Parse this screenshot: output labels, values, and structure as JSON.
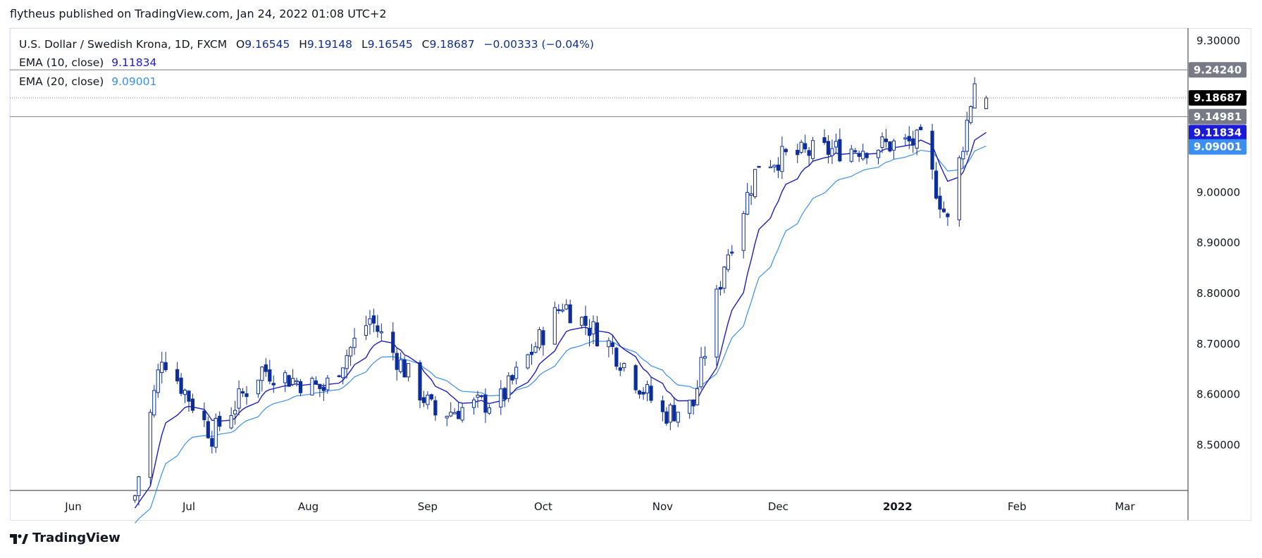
{
  "header": {
    "text": "flytheus published on TradingView.com, Jan 24, 2022 01:08 UTC+2"
  },
  "footer": {
    "brand": "TradingView"
  },
  "legend": {
    "symbol": "U.S. Dollar / Swedish Krona, 1D, FXCM",
    "open_label": "O",
    "open": "9.16545",
    "high_label": "H",
    "high": "9.19148",
    "low_label": "L",
    "low": "9.16545",
    "close_label": "C",
    "close": "9.18687",
    "change": "−0.00333 (−0.04%)",
    "ema10_label": "EMA (10, close)",
    "ema10_value": "9.11834",
    "ema20_label": "EMA (20, close)",
    "ema20_value": "9.09001"
  },
  "colors": {
    "candle_up_border": "#0d2e9a",
    "candle_down": "#0d2e9a",
    "ema10": "#1c1ccc",
    "ema20": "#3b8ff0",
    "last_price_badge": "#000000",
    "hline_badge": "#787b86",
    "ema10_badge": "#1a1ad8",
    "ema20_badge": "#3b8ff0"
  },
  "chart_data": {
    "type": "candlestick",
    "title": "U.S. Dollar / Swedish Krona, 1D, FXCM",
    "x_ticks": [
      "Jun",
      "Jul",
      "Aug",
      "Sep",
      "Oct",
      "Nov",
      "Dec",
      "2022",
      "Feb",
      "Mar"
    ],
    "y_ticks": [
      "9.30000",
      "9.00000",
      "8.90000",
      "8.80000",
      "8.70000",
      "8.60000",
      "8.50000"
    ],
    "ylim": [
      8.41,
      9.325
    ],
    "horizontal_lines": [
      9.2424,
      9.14981
    ],
    "dotted_line": 9.18687,
    "price_badges": [
      {
        "label": "9.24240",
        "value": 9.2424,
        "kind": "hline"
      },
      {
        "label": "9.18687",
        "value": 9.18687,
        "kind": "last"
      },
      {
        "label": "9.14981",
        "value": 9.14981,
        "kind": "hline"
      },
      {
        "label": "9.11834",
        "value": 9.11834,
        "kind": "ema10"
      },
      {
        "label": "9.09001",
        "value": 9.09001,
        "kind": "ema20"
      }
    ],
    "monthly_path": {
      "dates": [
        "2021-06-17",
        "2021-06-24",
        "2021-07-07",
        "2021-07-20",
        "2021-08-05",
        "2021-08-17",
        "2021-09-03",
        "2021-09-20",
        "2021-10-06",
        "2021-10-18",
        "2021-11-01",
        "2021-11-09",
        "2021-11-17",
        "2021-11-26",
        "2021-12-10",
        "2021-12-24",
        "2022-01-07",
        "2022-01-14",
        "2022-01-21",
        "2022-01-24"
      ],
      "closes": [
        8.4,
        8.68,
        8.52,
        8.65,
        8.61,
        8.75,
        8.56,
        8.59,
        8.78,
        8.7,
        8.56,
        8.58,
        8.86,
        9.06,
        9.08,
        9.09,
        9.1,
        8.94,
        9.22,
        9.18687
      ]
    },
    "ema10_end": 9.11834,
    "ema20_end": 9.09001
  }
}
